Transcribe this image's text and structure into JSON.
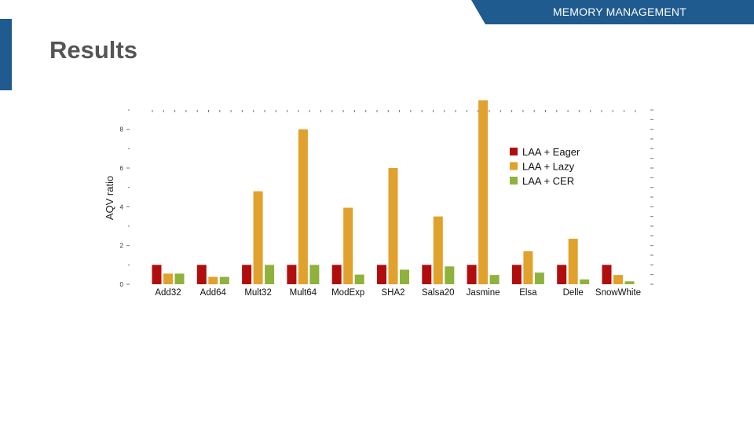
{
  "header": {
    "section_label": "MEMORY MANAGEMENT"
  },
  "slide": {
    "title": "Results"
  },
  "colors": {
    "accent": "#1f5b8e"
  },
  "chart_data": {
    "type": "bar",
    "title": "",
    "xlabel": "",
    "ylabel": "AQV ratio",
    "ylim": [
      0,
      9
    ],
    "yticks": [
      0,
      2,
      4,
      6,
      8
    ],
    "grid": false,
    "legend_position": "top-right",
    "categories": [
      "Add32",
      "Add64",
      "Mult32",
      "Mult64",
      "ModExp",
      "SHA2",
      "Salsa20",
      "Jasmine",
      "Elsa",
      "Delle",
      "SnowWhite"
    ],
    "series": [
      {
        "name": "LAA + Eager",
        "color": "#b00e0e",
        "values": [
          1.0,
          1.0,
          1.0,
          1.0,
          1.0,
          1.0,
          1.0,
          1.0,
          1.0,
          1.0,
          1.0
        ]
      },
      {
        "name": "LAA + Lazy",
        "color": "#e0a12d",
        "values": [
          0.55,
          0.38,
          4.8,
          8.0,
          3.95,
          6.0,
          3.5,
          9.5,
          1.7,
          2.35,
          0.48
        ]
      },
      {
        "name": "LAA + CER",
        "color": "#8fb23c",
        "values": [
          0.55,
          0.38,
          1.0,
          1.0,
          0.5,
          0.75,
          0.92,
          0.48,
          0.6,
          0.25,
          0.15
        ]
      }
    ]
  }
}
